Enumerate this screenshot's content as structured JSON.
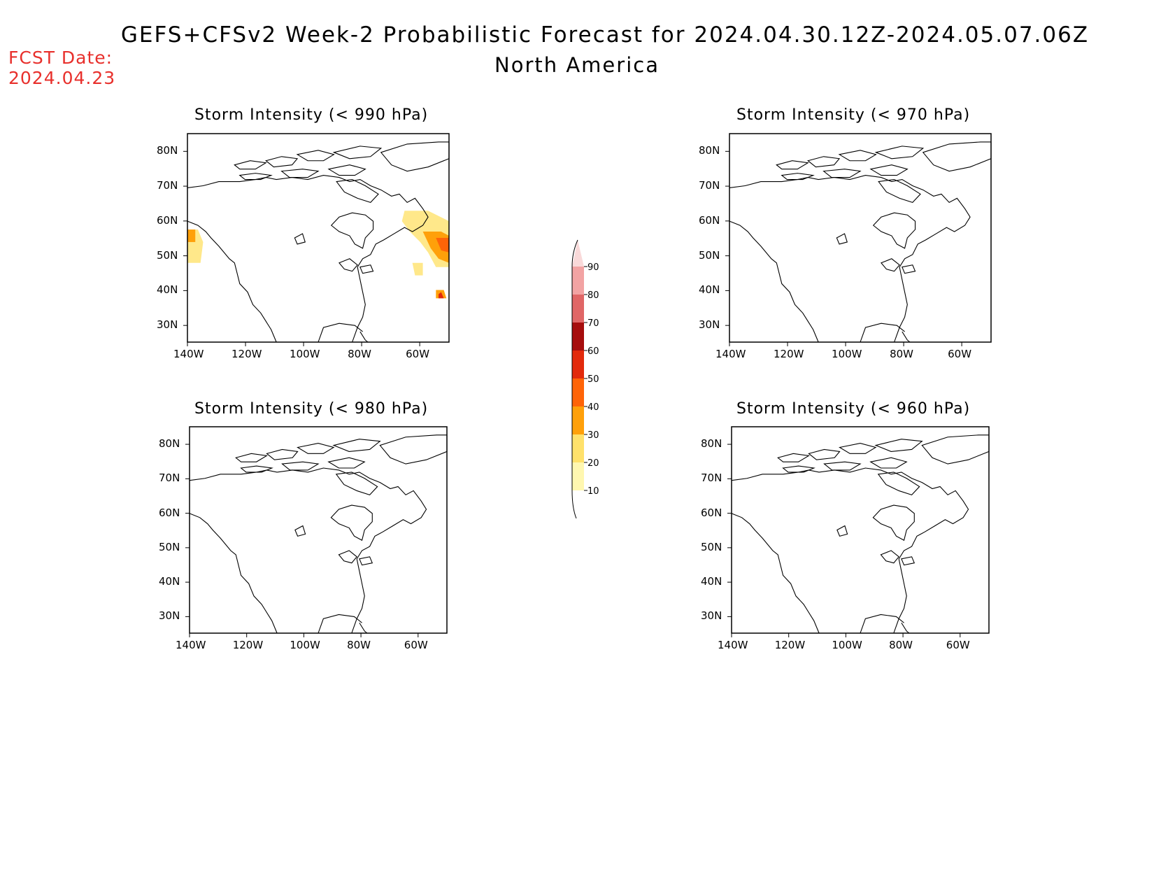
{
  "header": {
    "title": "GEFS+CFSv2 Week-2 Probabilistic Forecast for 2024.04.30.12Z-2024.05.07.06Z",
    "subtitle": "North America",
    "fcst_label": "FCST Date:",
    "fcst_date": "2024.04.23"
  },
  "axes": {
    "lat_labels": [
      "80N",
      "70N",
      "60N",
      "50N",
      "40N",
      "30N"
    ],
    "lon_labels": [
      "140W",
      "120W",
      "100W",
      "80W",
      "60W"
    ]
  },
  "panels": [
    {
      "title": "Storm Intensity (< 990 hPa)",
      "has_shading": true
    },
    {
      "title": "Storm Intensity (< 970 hPa)",
      "has_shading": false
    },
    {
      "title": "Storm Intensity (< 980 hPa)",
      "has_shading": false
    },
    {
      "title": "Storm Intensity (< 960 hPa)",
      "has_shading": false
    }
  ],
  "legend": {
    "levels": [
      "90",
      "80",
      "70",
      "60",
      "50",
      "40",
      "30",
      "20",
      "10"
    ],
    "colors": [
      "#f9d9d9",
      "#f2a3a3",
      "#e06666",
      "#a60d0d",
      "#e22a0c",
      "#ff6408",
      "#ffa00a",
      "#ffe16b",
      "#fff7b0"
    ]
  }
}
